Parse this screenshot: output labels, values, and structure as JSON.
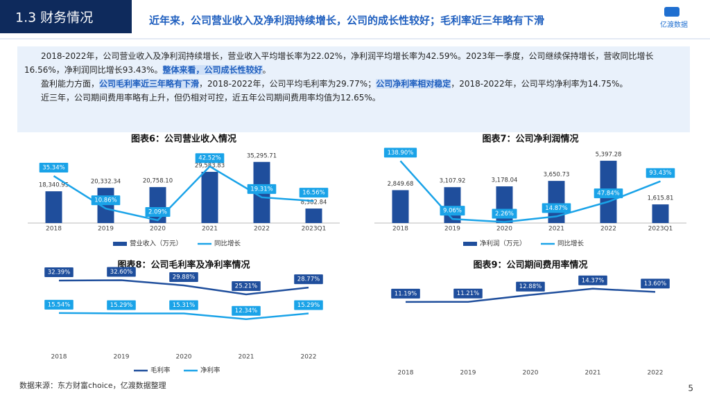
{
  "header": {
    "section": "1.3 财务情况",
    "title": "近年来，公司营业收入及净利润持续增长，公司的成长性较好；毛利率近三年略有下滑",
    "logo": "亿渡数据"
  },
  "summary": {
    "paragraphs": [
      [
        {
          "text": "2018-2022年，公司营业收入及净利润持续增长，营业收入平均增长率为22.02%，净利润平均增长率为42.59%。2023年一季度，公司继续保持增长，营收同比增长16.56%，净利润同比增长93.43%。"
        },
        {
          "text": "整体来看，公司成长性较好",
          "highlight": true
        },
        {
          "text": "。"
        }
      ],
      [
        {
          "text": "盈利能力方面，"
        },
        {
          "text": "公司毛利率近三年略有下滑",
          "highlight": true
        },
        {
          "text": "，2018-2022年，公司平均毛利率为29.77%；"
        },
        {
          "text": "公司净利率相对稳定",
          "highlight": true
        },
        {
          "text": "，2018-2022年，公司平均净利率为14.75%。"
        }
      ],
      [
        {
          "text": "近三年，公司期间费用率略有上升，但仍相对可控，近五年公司期间费用率均值为12.65%。"
        }
      ]
    ]
  },
  "chart_data": [
    {
      "type": "combo",
      "title": "图表6：公司营业收入情况",
      "categories": [
        "2018",
        "2019",
        "2020",
        "2021",
        "2022",
        "2023Q1"
      ],
      "ylim": [
        0,
        40000
      ],
      "y2lim": [
        0,
        52
      ],
      "series": [
        {
          "name": "营业收入（万元）",
          "type": "bar",
          "color": "#1f4e9c",
          "values": [
            18340.95,
            20332.34,
            20758.1,
            29583.83,
            35295.71,
            8382.84
          ],
          "value_labels": [
            "18,340.95",
            "20,332.34",
            "20,758.10",
            "29,583.83",
            "35,295.71",
            "8,382.84"
          ]
        },
        {
          "name": "同比增长",
          "type": "line",
          "axis": "y2",
          "color": "#1aa3e8",
          "values": [
            35.34,
            10.86,
            2.09,
            42.52,
            19.31,
            16.56
          ],
          "value_labels": [
            "35.34%",
            "10.86%",
            "2.09%",
            "42.52%",
            "19.31%",
            "16.56%"
          ]
        }
      ]
    },
    {
      "type": "combo",
      "title": "图表7：公司净利润情况",
      "categories": [
        "2018",
        "2019",
        "2020",
        "2021",
        "2022",
        "2023Q1"
      ],
      "ylim": [
        0,
        6000
      ],
      "y2lim": [
        0,
        155
      ],
      "series": [
        {
          "name": "净利润（万元）",
          "type": "bar",
          "color": "#1f4e9c",
          "values": [
            2849.68,
            3107.92,
            3178.04,
            3650.73,
            5397.28,
            1615.81
          ],
          "value_labels": [
            "2,849.68",
            "3,107.92",
            "3,178.04",
            "3,650.73",
            "5,397.28",
            "1,615.81"
          ]
        },
        {
          "name": "同比增长",
          "type": "line",
          "axis": "y2",
          "color": "#1aa3e8",
          "values": [
            138.9,
            9.06,
            2.26,
            14.87,
            47.84,
            93.43
          ],
          "value_labels": [
            "138.90%",
            "9.06%",
            "2.26%",
            "14.87%",
            "47.84%",
            "93.43%"
          ]
        }
      ]
    },
    {
      "type": "line",
      "title": "图表8：公司毛利率及净利率情况",
      "categories": [
        "2018",
        "2019",
        "2020",
        "2021",
        "2022"
      ],
      "ylim": [
        0,
        36
      ],
      "series": [
        {
          "name": "毛利率",
          "color": "#1f4e9c",
          "values": [
            32.39,
            32.6,
            29.88,
            25.21,
            28.77
          ],
          "value_labels": [
            "32.39%",
            "32.60%",
            "29.88%",
            "25.21%",
            "28.77%"
          ]
        },
        {
          "name": "净利率",
          "color": "#1aa3e8",
          "values": [
            15.54,
            15.29,
            15.31,
            12.34,
            15.29
          ],
          "value_labels": [
            "15.54%",
            "15.29%",
            "15.31%",
            "12.34%",
            "15.29%"
          ]
        }
      ]
    },
    {
      "type": "line",
      "title": "图表9：公司期间费用率情况",
      "categories": [
        "2018",
        "2019",
        "2020",
        "2021",
        "2022"
      ],
      "ylim": [
        -4,
        18
      ],
      "series": [
        {
          "color": "#1f4e9c",
          "values": [
            11.19,
            11.21,
            12.88,
            14.37,
            13.6
          ],
          "value_labels": [
            "11.19%",
            "11.21%",
            "12.88%",
            "14.37%",
            "13.60%"
          ]
        }
      ]
    }
  ],
  "footer": {
    "source": "数据来源：东方财富choice，亿渡数据整理",
    "page_number": "5"
  }
}
